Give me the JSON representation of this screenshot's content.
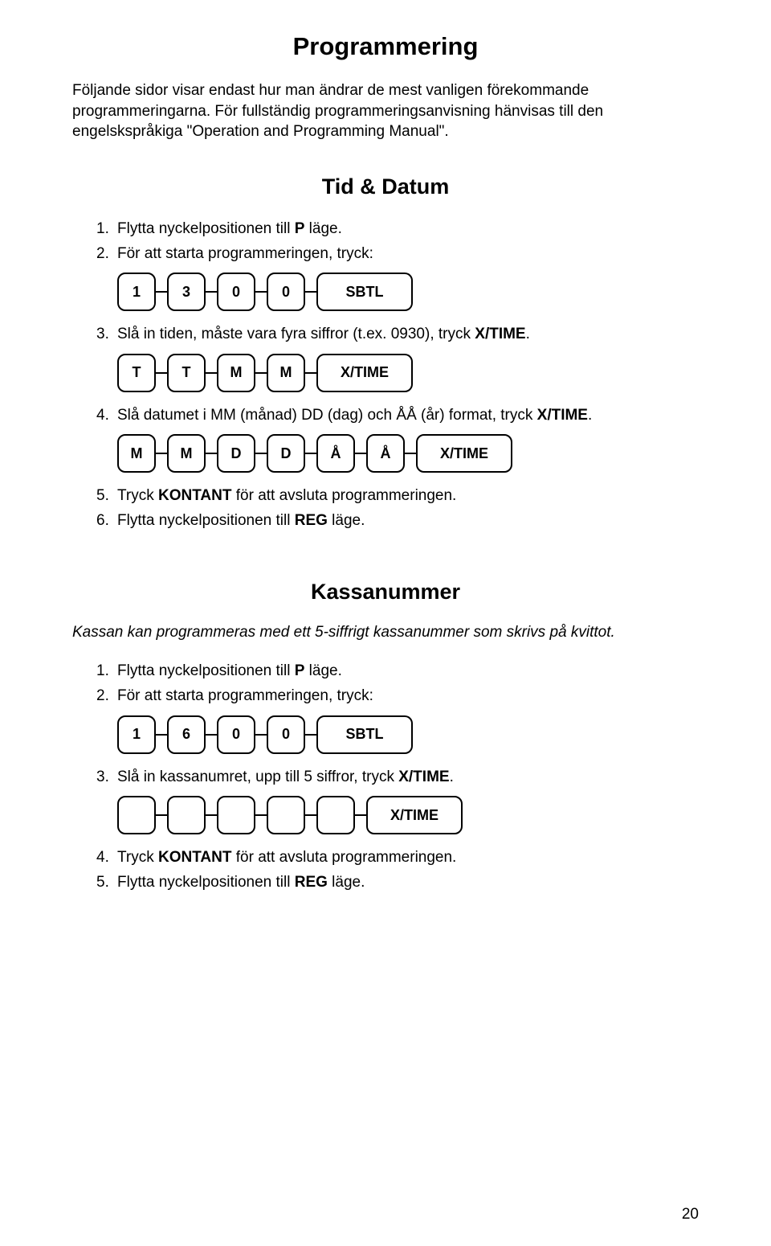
{
  "page": {
    "title": "Programmering",
    "intro": "Följande sidor visar endast hur man ändrar de mest vanligen förekommande programmeringarna. För fullständig programmeringsanvisning hänvisas till den engelskspråkiga \"Operation and Programming Manual\".",
    "pagenum": "20"
  },
  "section1": {
    "title": "Tid & Datum",
    "steps": {
      "s1": "Flytta nyckelpositionen till P läge.",
      "s2": "För att starta programmeringen, tryck:",
      "s3": "Slå in tiden, måste vara fyra siffror (t.ex. 0930), tryck X/TIME.",
      "s4": "Slå datumet i MM (månad) DD (dag) och ÅÅ (år) format, tryck X/TIME.",
      "s5": "Tryck KONTANT för att avsluta programmeringen.",
      "s6": "Flytta nyckelpositionen till REG läge."
    },
    "keys1": {
      "k1": "1",
      "k2": "3",
      "k3": "0",
      "k4": "0",
      "k5": "SBTL"
    },
    "keys2": {
      "k1": "T",
      "k2": "T",
      "k3": "M",
      "k4": "M",
      "k5": "X/TIME"
    },
    "keys3": {
      "k1": "M",
      "k2": "M",
      "k3": "D",
      "k4": "D",
      "k5": "Å",
      "k6": "Å",
      "k7": "X/TIME"
    }
  },
  "section2": {
    "title": "Kassanummer",
    "sub": "Kassan kan programmeras med ett 5-siffrigt kassanummer som skrivs på kvittot.",
    "steps": {
      "s1": "Flytta nyckelpositionen till P läge.",
      "s2": "För att starta programmeringen, tryck:",
      "s3": "Slå in kassanumret, upp till 5 siffror, tryck X/TIME.",
      "s4": "Tryck KONTANT för att avsluta programmeringen.",
      "s5": "Flytta nyckelpositionen till REG läge."
    },
    "keys1": {
      "k1": "1",
      "k2": "6",
      "k3": "0",
      "k4": "0",
      "k5": "SBTL"
    },
    "keys2": {
      "k6": "X/TIME"
    }
  }
}
